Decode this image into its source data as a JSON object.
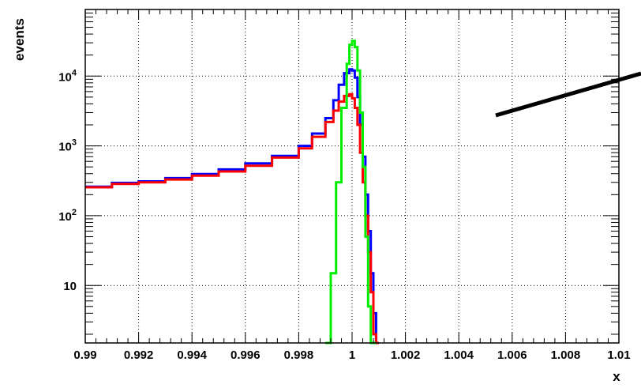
{
  "chart_data": {
    "type": "line",
    "style": "step histogram",
    "xlabel": "x",
    "ylabel": "events",
    "xlim": [
      0.99,
      1.01
    ],
    "ylim": [
      1.5,
      90000
    ],
    "y_scale": "log",
    "grid": true,
    "x_ticks": [
      {
        "value": 0.99,
        "label": "0.99"
      },
      {
        "value": 0.992,
        "label": "0.992"
      },
      {
        "value": 0.994,
        "label": "0.994"
      },
      {
        "value": 0.996,
        "label": "0.996"
      },
      {
        "value": 0.998,
        "label": "0.998"
      },
      {
        "value": 1.0,
        "label": "1"
      },
      {
        "value": 1.002,
        "label": "1.002"
      },
      {
        "value": 1.004,
        "label": "1.004"
      },
      {
        "value": 1.006,
        "label": "1.006"
      },
      {
        "value": 1.008,
        "label": "1.008"
      },
      {
        "value": 1.01,
        "label": "1.01"
      }
    ],
    "y_ticks": [
      {
        "value": 10,
        "base": "10",
        "exp": ""
      },
      {
        "value": 100,
        "base": "10",
        "exp": "2"
      },
      {
        "value": 1000,
        "base": "10",
        "exp": "3"
      },
      {
        "value": 10000,
        "base": "10",
        "exp": "4"
      }
    ],
    "series": [
      {
        "color": "#0000ff",
        "x": [
          0.99,
          0.991,
          0.992,
          0.993,
          0.994,
          0.995,
          0.996,
          0.997,
          0.998,
          0.9985,
          0.999,
          0.9993,
          0.9995,
          0.9997,
          0.9999,
          1.0,
          1.0001,
          1.0002,
          1.0003,
          1.0004,
          1.0005,
          1.0006,
          1.0007,
          1.0008,
          1.0009
        ],
        "y": [
          260,
          295,
          310,
          345,
          395,
          460,
          560,
          720,
          1000,
          1500,
          2500,
          4500,
          7500,
          11000,
          12500,
          12000,
          9500,
          5000,
          2000,
          700,
          200,
          60,
          15,
          4,
          1
        ]
      },
      {
        "color": "#ff0000",
        "x": [
          0.99,
          0.991,
          0.992,
          0.993,
          0.994,
          0.995,
          0.996,
          0.997,
          0.998,
          0.9985,
          0.999,
          0.9993,
          0.9995,
          0.9997,
          0.9999,
          1.0,
          1.0001,
          1.0002,
          1.0003,
          1.0004,
          1.0005,
          1.0006,
          1.0007,
          1.0008,
          1.0009
        ],
        "y": [
          255,
          285,
          300,
          330,
          375,
          430,
          520,
          680,
          920,
          1350,
          2200,
          3200,
          4300,
          5200,
          5500,
          4800,
          3500,
          2000,
          800,
          300,
          100,
          30,
          8,
          2,
          1
        ]
      },
      {
        "color": "#00ee00",
        "x": [
          0.999,
          0.9992,
          0.9994,
          0.9996,
          0.9998,
          0.9999,
          1.0,
          1.0001,
          1.0002,
          1.0003,
          1.0004,
          1.0005,
          1.0006,
          1.0007,
          1.0008
        ],
        "y": [
          1,
          15,
          300,
          3500,
          15000,
          28000,
          32000,
          26000,
          12000,
          3000,
          500,
          50,
          5,
          1,
          1
        ]
      }
    ]
  }
}
